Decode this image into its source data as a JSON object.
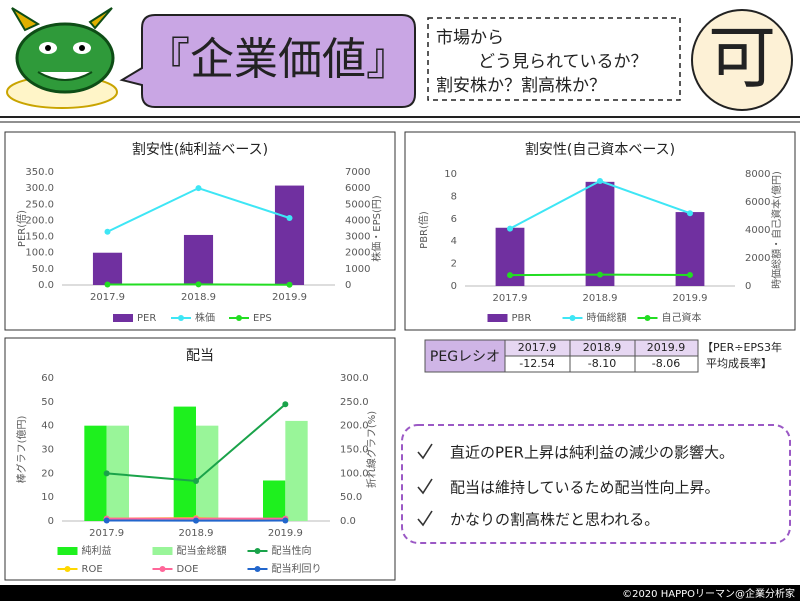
{
  "header": {
    "title": "『企業価値』",
    "question_lines": [
      "市場から",
      "どう見られているか？",
      "割安株か？割高株か？"
    ],
    "grade": "可"
  },
  "chart_data": [
    {
      "type": "combo",
      "title": "割安性(純利益ベース)",
      "categories": [
        "2017.9",
        "2018.9",
        "2019.9"
      ],
      "ylabel": "PER(倍)",
      "y2label": "株価・EPS(円)",
      "ylim": [
        0,
        350
      ],
      "yticks": [
        {
          "value": 0,
          "label": "0.0"
        },
        {
          "value": 50,
          "label": "50.0"
        },
        {
          "value": 100,
          "label": "100.0"
        },
        {
          "value": 150,
          "label": "150.0"
        },
        {
          "value": 200,
          "label": "200.0"
        },
        {
          "value": 250,
          "label": "250.0"
        },
        {
          "value": 300,
          "label": "300.0"
        },
        {
          "value": 350,
          "label": "350.0"
        }
      ],
      "y2lim": [
        0,
        7000
      ],
      "y2ticks": [
        0,
        1000,
        2000,
        3000,
        4000,
        5000,
        6000,
        7000
      ],
      "grid": false,
      "series": [
        {
          "name": "PER",
          "kind": "bar",
          "color": "#7030a0",
          "values": [
            100,
            155,
            308
          ]
        },
        {
          "name": "株価",
          "kind": "line",
          "axis": "y2",
          "color": "#3ee6f5",
          "values": [
            3300,
            6000,
            4150
          ]
        },
        {
          "name": "EPS",
          "kind": "line",
          "axis": "y2",
          "color": "#22dd22",
          "values": [
            33,
            39,
            13
          ]
        }
      ]
    },
    {
      "type": "combo",
      "title": "割安性(自己資本ベース)",
      "categories": [
        "2017.9",
        "2018.9",
        "2019.9"
      ],
      "ylabel": "PBR(倍)",
      "y2label": "時価総額・自己資本(億円)",
      "ylim": [
        0,
        10
      ],
      "yticks": [
        0,
        2,
        4,
        6,
        8,
        10
      ],
      "y2lim": [
        0,
        8000
      ],
      "y2ticks": [
        0,
        2000,
        4000,
        6000,
        8000
      ],
      "grid": false,
      "series": [
        {
          "name": "PBR",
          "kind": "bar",
          "color": "#7030a0",
          "values": [
            5.2,
            9.3,
            6.6
          ]
        },
        {
          "name": "時価総額",
          "kind": "line",
          "axis": "y2",
          "color": "#3ee6f5",
          "values": [
            4100,
            7500,
            5200
          ]
        },
        {
          "name": "自己資本",
          "kind": "line",
          "axis": "y2",
          "color": "#22dd22",
          "values": [
            780,
            810,
            790
          ]
        }
      ]
    },
    {
      "type": "combo",
      "title": "配当",
      "categories": [
        "2017.9",
        "2018.9",
        "2019.9"
      ],
      "ylabel": "棒グラフ(億円)",
      "y2label": "折れ線グラフ(%)",
      "ylim": [
        0,
        60
      ],
      "yticks": [
        0,
        10,
        20,
        30,
        40,
        50,
        60
      ],
      "y2lim": [
        0,
        300
      ],
      "y2ticks": [
        {
          "value": 0,
          "label": "0.0"
        },
        {
          "value": 50,
          "label": "50.0"
        },
        {
          "value": 100,
          "label": "100.0"
        },
        {
          "value": 150,
          "label": "150.0"
        },
        {
          "value": 200,
          "label": "200.0"
        },
        {
          "value": 250,
          "label": "250.0"
        },
        {
          "value": 300,
          "label": "300.0"
        }
      ],
      "grid": false,
      "series": [
        {
          "name": "純利益",
          "kind": "bar",
          "color": "#1ef01e",
          "values": [
            40,
            48,
            17
          ]
        },
        {
          "name": "配当金総額",
          "kind": "bar",
          "color": "#99f599",
          "values": [
            40,
            40,
            42
          ]
        },
        {
          "name": "配当性向",
          "kind": "line",
          "axis": "y2",
          "color": "#1aa34a",
          "values": [
            100,
            84,
            245
          ]
        },
        {
          "name": "ROE",
          "kind": "line",
          "axis": "y2",
          "color": "#ffd700",
          "values": [
            5,
            6,
            2
          ]
        },
        {
          "name": "DOE",
          "kind": "line",
          "axis": "y2",
          "color": "#ff6699",
          "values": [
            5,
            5,
            5
          ]
        },
        {
          "name": "配当利回り",
          "kind": "line",
          "axis": "y2",
          "color": "#2266cc",
          "values": [
            1,
            0.7,
            1
          ]
        }
      ]
    }
  ],
  "peg_table": {
    "header": [
      "PEGレシオ",
      "2017.9",
      "2018.9",
      "2019.9"
    ],
    "values": [
      "-12.54",
      "-8.10",
      "-8.06"
    ],
    "note": [
      "【PER÷EPS3年",
      "平均成長率】"
    ]
  },
  "notes": [
    "直近のPER上昇は純利益の減少の影響大。",
    "配当は維持しているため配当性向上昇。",
    "かなりの割高株だと思われる。"
  ],
  "footer": "©2020 HAPPOリーマン@企業分析家"
}
